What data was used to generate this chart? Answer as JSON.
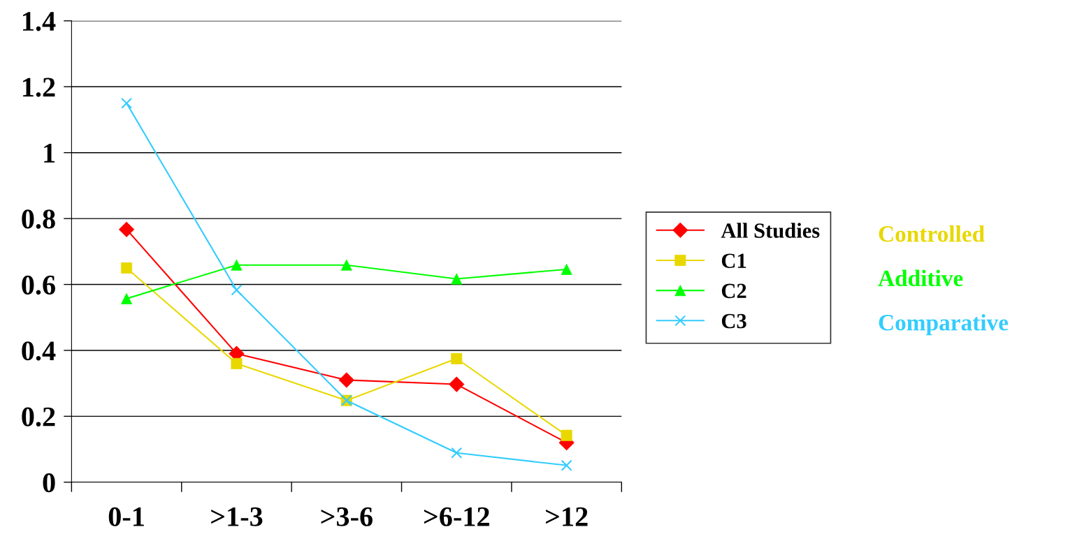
{
  "chart_data": {
    "type": "line",
    "categories": [
      "0-1",
      ">1-3",
      ">3-6",
      ">6-12",
      ">12"
    ],
    "series": [
      {
        "name": "All Studies",
        "color": "#ff0000",
        "marker": "diamond",
        "values": [
          0.767,
          0.39,
          0.31,
          0.297,
          0.12
        ]
      },
      {
        "name": "C1",
        "color": "#e8d800",
        "marker": "square",
        "values": [
          0.65,
          0.36,
          0.248,
          0.375,
          0.142
        ]
      },
      {
        "name": "C2",
        "color": "#00ff00",
        "marker": "triangle",
        "values": [
          0.557,
          0.659,
          0.659,
          0.617,
          0.646
        ]
      },
      {
        "name": "C3",
        "color": "#33ccff",
        "marker": "cross",
        "values": [
          1.15,
          0.583,
          0.248,
          0.089,
          0.051
        ]
      }
    ],
    "ylim": [
      0,
      1.4
    ],
    "yticks": [
      0,
      0.2,
      0.4,
      0.6,
      0.8,
      1,
      1.2,
      1.4
    ],
    "grid": "y",
    "legend": "right",
    "line_style": "solid",
    "annotations": [
      "Controlled",
      "Additive",
      "Comparative"
    ]
  }
}
